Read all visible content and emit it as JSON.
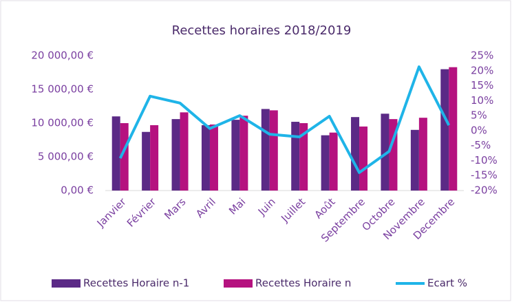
{
  "chart_data": {
    "type": "bar-line",
    "title": "Recettes horaires 2018/2019",
    "categories": [
      "Janvier",
      "Février",
      "Mars",
      "Avril",
      "Mai",
      "Juin",
      "Juillet",
      "Août",
      "Septembre",
      "Octobre",
      "Novembre",
      "Decembre"
    ],
    "series": [
      {
        "name": "Recettes Horaire n-1",
        "color": "#5b2a86",
        "kind": "bar",
        "values": [
          11000,
          8700,
          10600,
          9700,
          10500,
          12100,
          10200,
          8200,
          10900,
          11400,
          9000,
          18000
        ]
      },
      {
        "name": "Recettes Horaire n",
        "color": "#b5127f",
        "kind": "bar",
        "values": [
          10000,
          9700,
          11600,
          9800,
          11100,
          11900,
          10000,
          8600,
          9500,
          10600,
          10800,
          18300
        ]
      },
      {
        "name": "Ecart %",
        "color": "#1fb4e8",
        "kind": "line",
        "axis": "y2",
        "values": [
          -9.2,
          11.5,
          9.2,
          0.7,
          5,
          -1.2,
          -2.1,
          4.8,
          -14,
          -6.9,
          21.3,
          1.8
        ]
      }
    ],
    "ylim": [
      0,
      20000
    ],
    "yticks": [
      {
        "value": 0,
        "label": "0,00 €"
      },
      {
        "value": 5000,
        "label": "5 000,00 €"
      },
      {
        "value": 10000,
        "label": "10 000,00 €"
      },
      {
        "value": 15000,
        "label": "15 000,00 €"
      },
      {
        "value": 20000,
        "label": "20 000,00 €"
      }
    ],
    "y2lim": [
      -20,
      25
    ],
    "y2ticks": [
      {
        "value": -20,
        "label": "-20%"
      },
      {
        "value": -15,
        "label": "-15%"
      },
      {
        "value": -10,
        "label": "-10%"
      },
      {
        "value": -5,
        "label": "-5%"
      },
      {
        "value": 0,
        "label": "0%"
      },
      {
        "value": 5,
        "label": "5%"
      },
      {
        "value": 10,
        "label": "10%"
      },
      {
        "value": 15,
        "label": "15%"
      },
      {
        "value": 20,
        "label": "20%"
      },
      {
        "value": 25,
        "label": "25%"
      }
    ],
    "legend": "bottom"
  }
}
